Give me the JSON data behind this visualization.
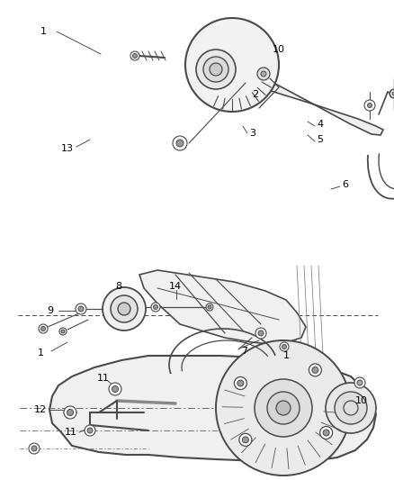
{
  "bg_color": "#ffffff",
  "line_color": "#4a4a4a",
  "text_color": "#000000",
  "fig_width": 4.38,
  "fig_height": 5.33,
  "dpi": 100
}
